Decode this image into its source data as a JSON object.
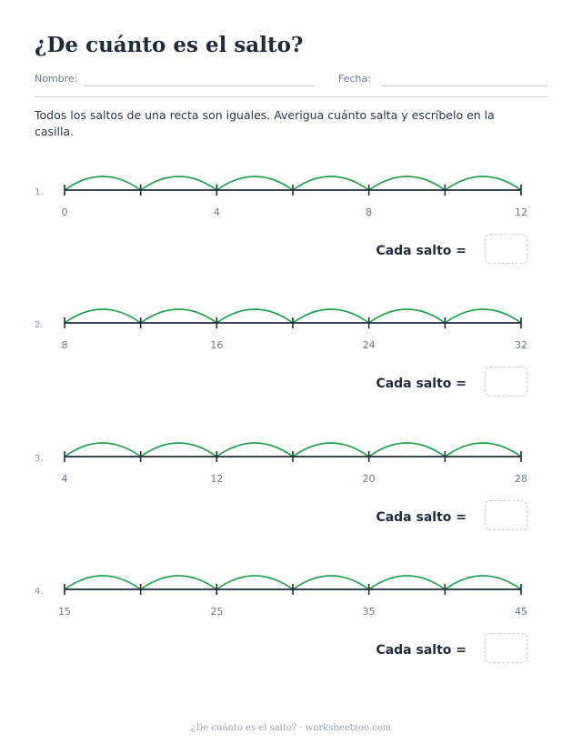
{
  "title": "¿De cuánto es el salto?",
  "fields": {
    "name_label": "Nombre:",
    "date_label": "Fecha:"
  },
  "instructions": "Todos los saltos de una recta son iguales. Averigua cuánto salta y escríbelo en la casilla.",
  "answer_label": "Cada salto =",
  "problems": [
    {
      "number": "1.",
      "start": 0,
      "end": 12,
      "jumps": 6,
      "labels": [
        "0",
        "4",
        "8",
        "12"
      ]
    },
    {
      "number": "2.",
      "start": 8,
      "end": 32,
      "jumps": 6,
      "labels": [
        "8",
        "16",
        "24",
        "32"
      ]
    },
    {
      "number": "3.",
      "start": 4,
      "end": 28,
      "jumps": 6,
      "labels": [
        "4",
        "12",
        "20",
        "28"
      ]
    },
    {
      "number": "4.",
      "start": 15,
      "end": 45,
      "jumps": 6,
      "labels": [
        "15",
        "25",
        "35",
        "45"
      ]
    }
  ],
  "colors": {
    "arc": "#22a04b",
    "line": "#1f2a3a",
    "label": "#6b7a90"
  },
  "footer": "¿De cuánto es el salto? · worksheetzoo.com"
}
